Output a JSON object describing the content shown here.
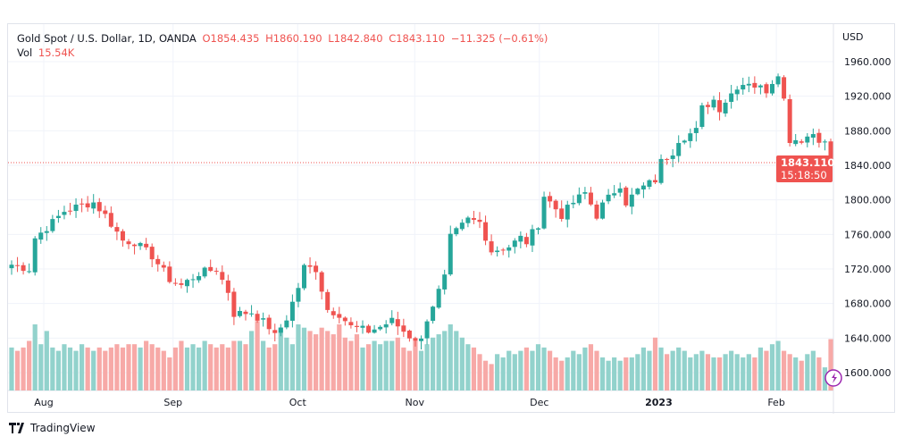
{
  "legend": {
    "symbol": "Gold Spot / U.S. Dollar, 1D, OANDA",
    "open": "O1854.435",
    "high": "H1860.190",
    "low": "L1842.840",
    "close": "C1843.110",
    "change": "−11.325 (−0.61%)",
    "vol_label": "Vol",
    "vol_value": "15.54K"
  },
  "branding": "TradingView",
  "colors": {
    "up": "#26a69a",
    "down": "#ef5350",
    "vol_up": "#92d2cc",
    "vol_down": "#f7a9a7",
    "grid": "#f0f3fa"
  },
  "chart_data": {
    "type": "candlestick",
    "currency": "USD",
    "ylim": [
      1580,
      1980
    ],
    "yticks": [
      "1960.000",
      "1920.000",
      "1880.000",
      "1840.000",
      "1800.000",
      "1760.000",
      "1720.000",
      "1680.000",
      "1640.000",
      "1600.000"
    ],
    "ytick_values": [
      1960,
      1920,
      1880,
      1840,
      1800,
      1760,
      1720,
      1680,
      1640,
      1600
    ],
    "xticks": [
      {
        "label": "Aug",
        "index": 5.5
      },
      {
        "label": "Sep",
        "index": 27.6
      },
      {
        "label": "Oct",
        "index": 48.9
      },
      {
        "label": "Nov",
        "index": 68.9
      },
      {
        "label": "Dec",
        "index": 90.2
      },
      {
        "label": "2023",
        "index": 110.6
      },
      {
        "label": "Feb",
        "index": 130.7
      }
    ],
    "last_price": "1843.110",
    "countdown": "15:18:50",
    "last_value": 1843.11,
    "n_candles": 141,
    "close_waypoints": [
      [
        0,
        1725
      ],
      [
        3,
        1720
      ],
      [
        4,
        1756
      ],
      [
        7,
        1774
      ],
      [
        9,
        1787
      ],
      [
        12,
        1794
      ],
      [
        14,
        1797
      ],
      [
        16,
        1782
      ],
      [
        19,
        1753
      ],
      [
        21,
        1751
      ],
      [
        24,
        1735
      ],
      [
        27,
        1708
      ],
      [
        29,
        1701
      ],
      [
        32,
        1715
      ],
      [
        35,
        1720
      ],
      [
        37,
        1694
      ],
      [
        38,
        1668
      ],
      [
        41,
        1670
      ],
      [
        44,
        1653
      ],
      [
        45,
        1642
      ],
      [
        47,
        1663
      ],
      [
        49,
        1699
      ],
      [
        50,
        1722
      ],
      [
        52,
        1720
      ],
      [
        54,
        1673
      ],
      [
        56,
        1668
      ],
      [
        58,
        1653
      ],
      [
        61,
        1648
      ],
      [
        63,
        1653
      ],
      [
        65,
        1660
      ],
      [
        68,
        1642
      ],
      [
        70,
        1637
      ],
      [
        71,
        1663
      ],
      [
        74,
        1710
      ],
      [
        75,
        1756
      ],
      [
        78,
        1777
      ],
      [
        80,
        1774
      ],
      [
        82,
        1741
      ],
      [
        85,
        1746
      ],
      [
        87,
        1756
      ],
      [
        88,
        1751
      ],
      [
        90,
        1772
      ],
      [
        91,
        1805
      ],
      [
        94,
        1782
      ],
      [
        96,
        1797
      ],
      [
        98,
        1808
      ],
      [
        100,
        1782
      ],
      [
        101,
        1794
      ],
      [
        104,
        1818
      ],
      [
        105,
        1797
      ],
      [
        107,
        1811
      ],
      [
        110,
        1823
      ],
      [
        111,
        1844
      ],
      [
        113,
        1856
      ],
      [
        114,
        1870
      ],
      [
        117,
        1880
      ],
      [
        118,
        1906
      ],
      [
        120,
        1916
      ],
      [
        121,
        1906
      ],
      [
        124,
        1932
      ],
      [
        126,
        1937
      ],
      [
        127,
        1932
      ],
      [
        129,
        1927
      ],
      [
        131,
        1948
      ],
      [
        132,
        1916
      ],
      [
        133,
        1870
      ],
      [
        135,
        1870
      ],
      [
        137,
        1877
      ],
      [
        139,
        1865
      ],
      [
        140,
        1843
      ]
    ],
    "volume_k": [
      13,
      12,
      13,
      15,
      20,
      14,
      18,
      13,
      12,
      14,
      13,
      12,
      14,
      13,
      12,
      13,
      12,
      13,
      14,
      13,
      14,
      14,
      13,
      15,
      14,
      13,
      12,
      10,
      13,
      15,
      13,
      14,
      13,
      15,
      14,
      13,
      14,
      13,
      15,
      15,
      14,
      18,
      21,
      15,
      13,
      14,
      19,
      16,
      14,
      20,
      19,
      18,
      17,
      19,
      18,
      17,
      20,
      16,
      15,
      17,
      13,
      14,
      15,
      14,
      15,
      15,
      16,
      13,
      12,
      15,
      12,
      14,
      16,
      17,
      18,
      20,
      18,
      16,
      14,
      13,
      11,
      9,
      8,
      11,
      10,
      12,
      11,
      12,
      13,
      12,
      14,
      13,
      12,
      10,
      9,
      10,
      12,
      11,
      13,
      14,
      12,
      10,
      9,
      10,
      9,
      10,
      10,
      11,
      13,
      12,
      16,
      13,
      11,
      12,
      13,
      12,
      10,
      11,
      12,
      11,
      10,
      10,
      11,
      12,
      11,
      10,
      11,
      10,
      13,
      12,
      14,
      15,
      12,
      11,
      10,
      9,
      11,
      12,
      10,
      7,
      15.54
    ]
  }
}
